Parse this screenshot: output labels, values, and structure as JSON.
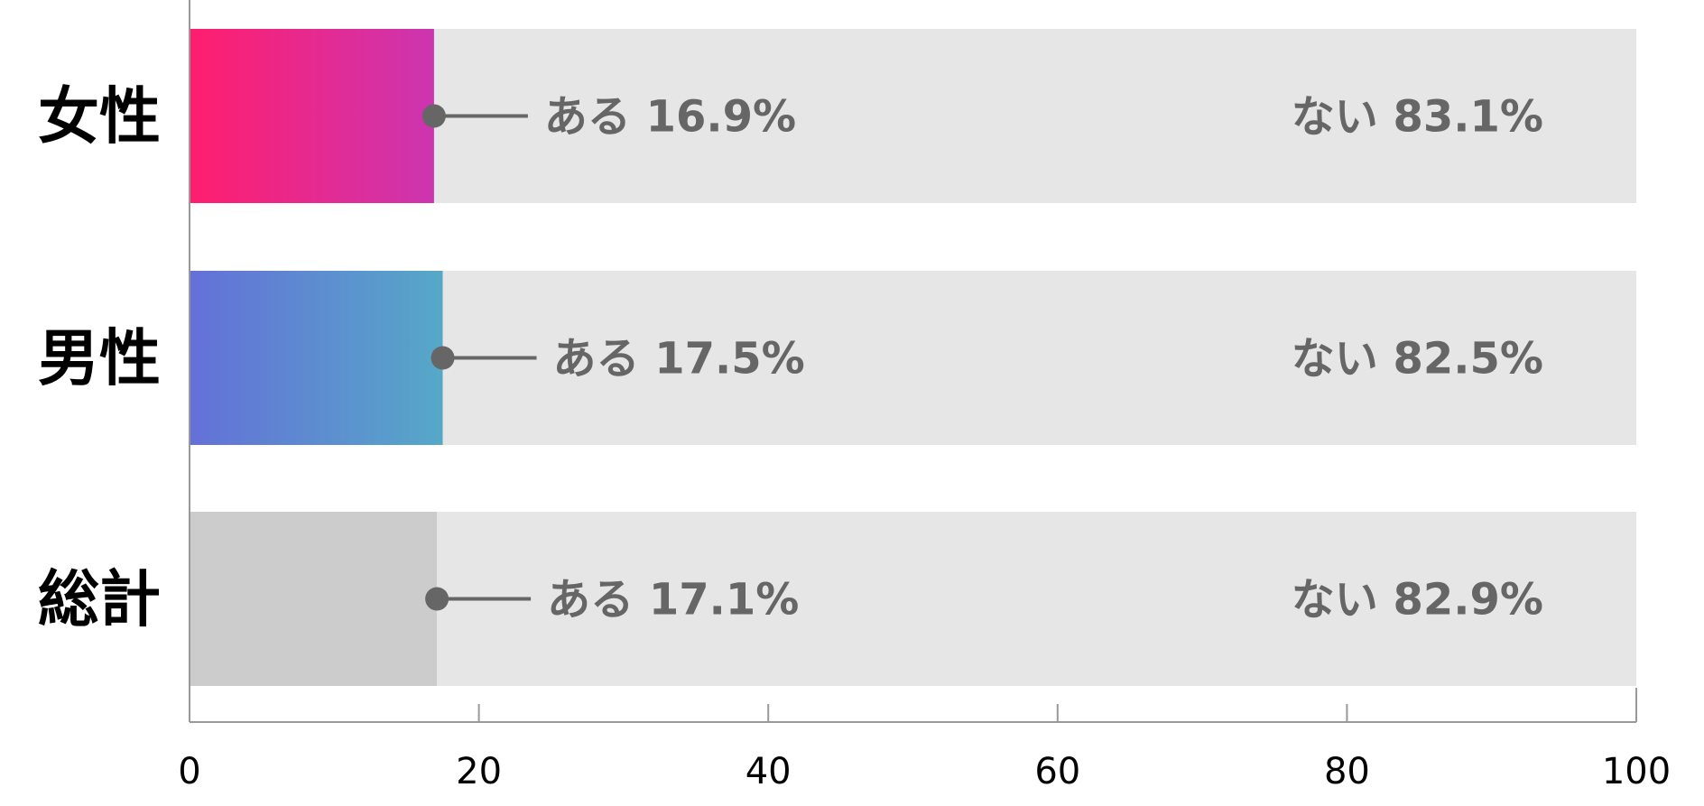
{
  "chart_data": {
    "type": "bar",
    "orientation": "horizontal",
    "stacked": true,
    "categories": [
      "女性",
      "男性",
      "総計"
    ],
    "series": [
      {
        "name": "ある",
        "values": [
          16.9,
          17.5,
          17.1
        ]
      },
      {
        "name": "ない",
        "values": [
          83.1,
          82.5,
          82.9
        ]
      }
    ],
    "value_labels": {
      "yes": [
        "ある 16.9%",
        "ある 17.5%",
        "ある 17.1%"
      ],
      "no": [
        "ない 83.1%",
        "ない 82.5%",
        "ない 82.9%"
      ]
    },
    "colors": {
      "yes_gradients": [
        [
          "#ff1e6e",
          "#cc35b0"
        ],
        [
          "#6470d8",
          "#56a8c8"
        ],
        [
          "#cccccc",
          "#cccccc"
        ]
      ],
      "no_fill": "#e6e6e6",
      "label_color": "#666666",
      "axis_color": "#999999"
    },
    "xlim": [
      0,
      100
    ],
    "xticks": [
      0,
      20,
      40,
      60,
      80,
      100
    ],
    "xtick_labels": [
      "0",
      "20",
      "40",
      "60",
      "80",
      "100"
    ],
    "title": "",
    "xlabel": "",
    "ylabel": "",
    "grid": false,
    "legend": "none"
  }
}
